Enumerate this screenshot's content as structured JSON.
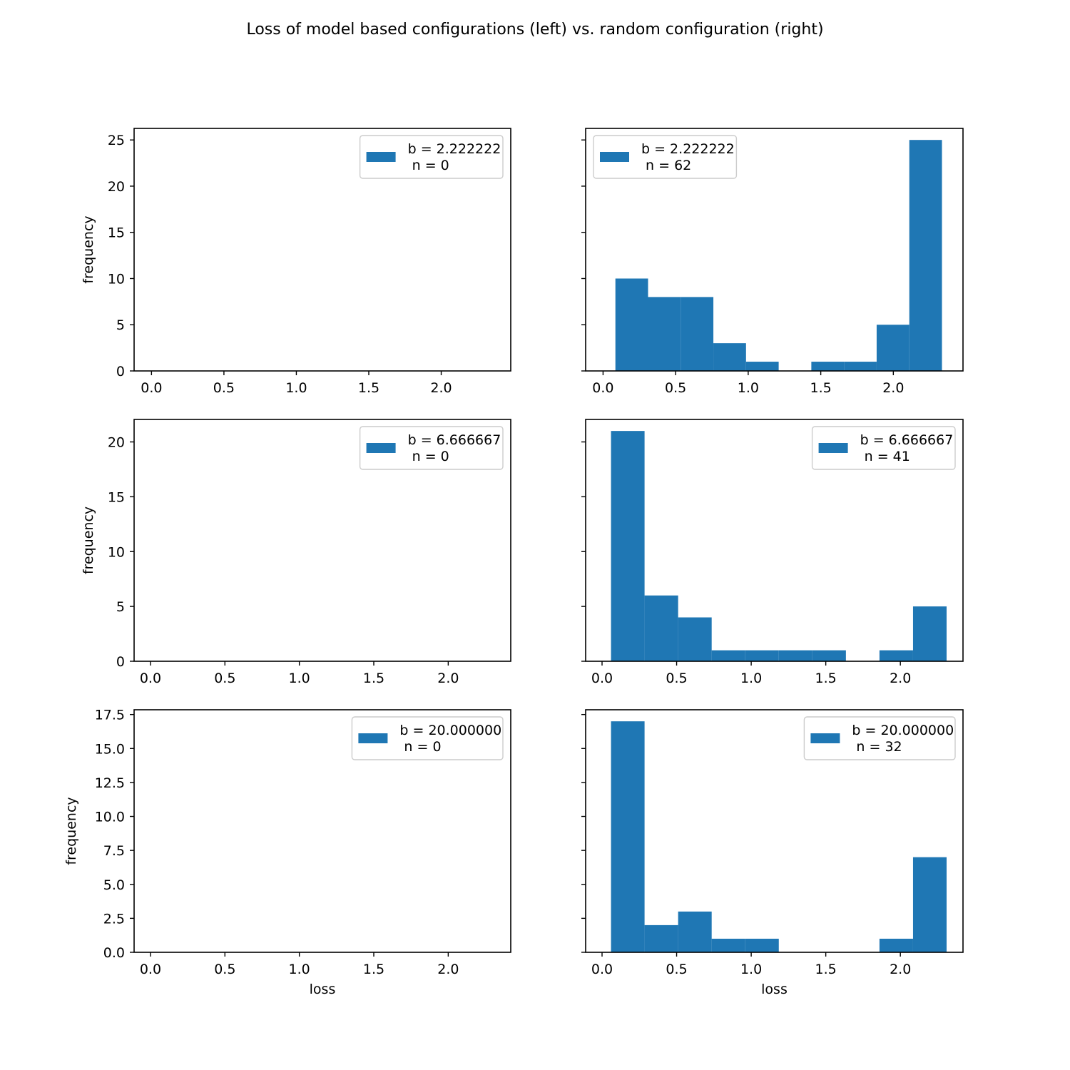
{
  "title": "Loss of model based configurations (left) vs. random configuration (right)",
  "colors": {
    "bar": "#1f77b4",
    "axis": "#000000",
    "legend_border": "#cccccc",
    "background": "#ffffff"
  },
  "chart_data": [
    {
      "type": "bar",
      "position": "row1-left",
      "xlabel": "",
      "ylabel": "frequency",
      "xlim": [
        -0.12,
        2.48
      ],
      "ylim": [
        0,
        26.25
      ],
      "xticks": [
        "0.0",
        "0.5",
        "1.0",
        "1.5",
        "2.0"
      ],
      "yticks": [
        "0",
        "5",
        "10",
        "15",
        "20",
        "25"
      ],
      "show_ytick_labels": true,
      "legend": {
        "placement": "top-right",
        "line1": "b = 2.222222",
        "line2": " n = 0"
      },
      "bins": [],
      "grid": false
    },
    {
      "type": "bar",
      "position": "row1-right",
      "xlabel": "",
      "ylabel": "",
      "xlim": [
        -0.12,
        2.48
      ],
      "ylim": [
        0,
        26.25
      ],
      "xticks": [
        "0.0",
        "0.5",
        "1.0",
        "1.5",
        "2.0"
      ],
      "yticks": [
        "0",
        "5",
        "10",
        "15",
        "20",
        "25"
      ],
      "show_ytick_labels": false,
      "legend": {
        "placement": "top-left",
        "line1": "b = 2.222222",
        "line2": " n = 62"
      },
      "bins": [
        {
          "x0": 0.085,
          "x1": 0.31,
          "value": 10
        },
        {
          "x0": 0.31,
          "x1": 0.535,
          "value": 8
        },
        {
          "x0": 0.535,
          "x1": 0.76,
          "value": 8
        },
        {
          "x0": 0.76,
          "x1": 0.985,
          "value": 3
        },
        {
          "x0": 0.985,
          "x1": 1.21,
          "value": 1
        },
        {
          "x0": 1.21,
          "x1": 1.435,
          "value": 0
        },
        {
          "x0": 1.435,
          "x1": 1.66,
          "value": 1
        },
        {
          "x0": 1.66,
          "x1": 1.885,
          "value": 1
        },
        {
          "x0": 1.885,
          "x1": 2.11,
          "value": 5
        },
        {
          "x0": 2.11,
          "x1": 2.335,
          "value": 25
        }
      ],
      "grid": false
    },
    {
      "type": "bar",
      "position": "row2-left",
      "xlabel": "",
      "ylabel": "frequency",
      "xlim": [
        -0.11,
        2.42
      ],
      "ylim": [
        0,
        22.05
      ],
      "xticks": [
        "0.0",
        "0.5",
        "1.0",
        "1.5",
        "2.0"
      ],
      "yticks": [
        "0",
        "5",
        "10",
        "15",
        "20"
      ],
      "show_ytick_labels": true,
      "legend": {
        "placement": "top-right",
        "line1": "b = 6.666667",
        "line2": " n = 0"
      },
      "bins": [],
      "grid": false
    },
    {
      "type": "bar",
      "position": "row2-right",
      "xlabel": "",
      "ylabel": "",
      "xlim": [
        -0.11,
        2.42
      ],
      "ylim": [
        0,
        22.05
      ],
      "xticks": [
        "0.0",
        "0.5",
        "1.0",
        "1.5",
        "2.0"
      ],
      "yticks": [
        "0",
        "5",
        "10",
        "15",
        "20"
      ],
      "show_ytick_labels": false,
      "legend": {
        "placement": "top-right",
        "line1": "b = 6.666667",
        "line2": " n = 41"
      },
      "bins": [
        {
          "x0": 0.06,
          "x1": 0.285,
          "value": 21
        },
        {
          "x0": 0.285,
          "x1": 0.51,
          "value": 6
        },
        {
          "x0": 0.51,
          "x1": 0.735,
          "value": 4
        },
        {
          "x0": 0.735,
          "x1": 0.96,
          "value": 1
        },
        {
          "x0": 0.96,
          "x1": 1.185,
          "value": 1
        },
        {
          "x0": 1.185,
          "x1": 1.41,
          "value": 1
        },
        {
          "x0": 1.41,
          "x1": 1.635,
          "value": 1
        },
        {
          "x0": 1.635,
          "x1": 1.86,
          "value": 0
        },
        {
          "x0": 1.86,
          "x1": 2.085,
          "value": 1
        },
        {
          "x0": 2.085,
          "x1": 2.31,
          "value": 5
        }
      ],
      "grid": false
    },
    {
      "type": "bar",
      "position": "row3-left",
      "xlabel": "loss",
      "ylabel": "frequency",
      "xlim": [
        -0.11,
        2.42
      ],
      "ylim": [
        0,
        17.85
      ],
      "xticks": [
        "0.0",
        "0.5",
        "1.0",
        "1.5",
        "2.0"
      ],
      "yticks": [
        "0.0",
        "2.5",
        "5.0",
        "7.5",
        "10.0",
        "12.5",
        "15.0",
        "17.5"
      ],
      "show_ytick_labels": true,
      "legend": {
        "placement": "top-right",
        "line1": "b = 20.000000",
        "line2": " n = 0"
      },
      "bins": [],
      "grid": false
    },
    {
      "type": "bar",
      "position": "row3-right",
      "xlabel": "loss",
      "ylabel": "",
      "xlim": [
        -0.11,
        2.42
      ],
      "ylim": [
        0,
        17.85
      ],
      "xticks": [
        "0.0",
        "0.5",
        "1.0",
        "1.5",
        "2.0"
      ],
      "yticks": [
        "0.0",
        "2.5",
        "5.0",
        "7.5",
        "10.0",
        "12.5",
        "15.0",
        "17.5"
      ],
      "show_ytick_labels": false,
      "legend": {
        "placement": "top-right",
        "line1": "b = 20.000000",
        "line2": " n = 32"
      },
      "bins": [
        {
          "x0": 0.06,
          "x1": 0.285,
          "value": 17
        },
        {
          "x0": 0.285,
          "x1": 0.51,
          "value": 2
        },
        {
          "x0": 0.51,
          "x1": 0.735,
          "value": 3
        },
        {
          "x0": 0.735,
          "x1": 0.96,
          "value": 1
        },
        {
          "x0": 0.96,
          "x1": 1.185,
          "value": 1
        },
        {
          "x0": 1.185,
          "x1": 1.41,
          "value": 0
        },
        {
          "x0": 1.41,
          "x1": 1.635,
          "value": 0
        },
        {
          "x0": 1.635,
          "x1": 1.86,
          "value": 0
        },
        {
          "x0": 1.86,
          "x1": 2.085,
          "value": 1
        },
        {
          "x0": 2.085,
          "x1": 2.31,
          "value": 7
        }
      ],
      "grid": false
    }
  ]
}
